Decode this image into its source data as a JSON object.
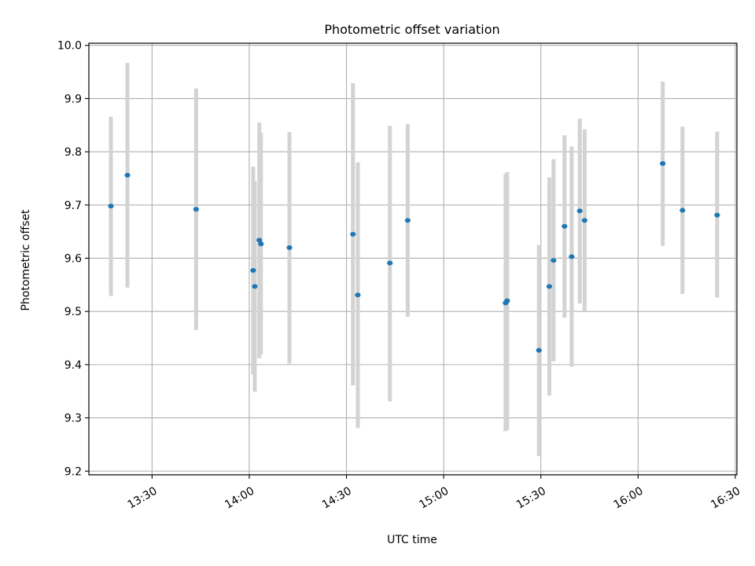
{
  "chart_data": {
    "type": "scatter",
    "title": "Photometric offset variation",
    "xlabel": "UTC time",
    "ylabel": "Photometric offset",
    "x_unit": "minutes since 00:00 UTC",
    "xlim": [
      790.5,
      990.5
    ],
    "ylim": [
      9.193,
      10.004
    ],
    "grid": true,
    "x_ticks": [
      {
        "value": 810,
        "label": "13:30"
      },
      {
        "value": 840,
        "label": "14:00"
      },
      {
        "value": 870,
        "label": "14:30"
      },
      {
        "value": 900,
        "label": "15:00"
      },
      {
        "value": 930,
        "label": "15:30"
      },
      {
        "value": 960,
        "label": "16:00"
      },
      {
        "value": 990,
        "label": "16:30"
      }
    ],
    "y_ticks": [
      {
        "value": 9.2,
        "label": "9.2"
      },
      {
        "value": 9.3,
        "label": "9.3"
      },
      {
        "value": 9.4,
        "label": "9.4"
      },
      {
        "value": 9.5,
        "label": "9.5"
      },
      {
        "value": 9.6,
        "label": "9.6"
      },
      {
        "value": 9.7,
        "label": "9.7"
      },
      {
        "value": 9.8,
        "label": "9.8"
      },
      {
        "value": 9.9,
        "label": "9.9"
      },
      {
        "value": 10.0,
        "label": "10.0"
      }
    ],
    "marker_color": "#1f77b4",
    "errorbar_color": "#d3d3d3",
    "points": [
      {
        "x": 797.3,
        "y": 9.698,
        "lo": 9.529,
        "hi": 9.866
      },
      {
        "x": 802.4,
        "y": 9.756,
        "lo": 9.545,
        "hi": 9.967
      },
      {
        "x": 823.6,
        "y": 9.692,
        "lo": 9.465,
        "hi": 9.919
      },
      {
        "x": 841.2,
        "y": 9.577,
        "lo": 9.382,
        "hi": 9.772
      },
      {
        "x": 841.7,
        "y": 9.547,
        "lo": 9.349,
        "hi": 9.745
      },
      {
        "x": 843.1,
        "y": 9.634,
        "lo": 9.412,
        "hi": 9.855
      },
      {
        "x": 843.6,
        "y": 9.627,
        "lo": 9.419,
        "hi": 9.836
      },
      {
        "x": 852.4,
        "y": 9.62,
        "lo": 9.402,
        "hi": 9.837
      },
      {
        "x": 872.0,
        "y": 9.645,
        "lo": 9.361,
        "hi": 9.929
      },
      {
        "x": 873.5,
        "y": 9.531,
        "lo": 9.281,
        "hi": 9.78
      },
      {
        "x": 883.4,
        "y": 9.591,
        "lo": 9.331,
        "hi": 9.849
      },
      {
        "x": 888.9,
        "y": 9.671,
        "lo": 9.49,
        "hi": 9.852
      },
      {
        "x": 919.1,
        "y": 9.516,
        "lo": 9.275,
        "hi": 9.758
      },
      {
        "x": 919.6,
        "y": 9.52,
        "lo": 9.277,
        "hi": 9.762
      },
      {
        "x": 929.4,
        "y": 9.427,
        "lo": 9.228,
        "hi": 9.625
      },
      {
        "x": 932.6,
        "y": 9.547,
        "lo": 9.342,
        "hi": 9.752
      },
      {
        "x": 933.9,
        "y": 9.596,
        "lo": 9.406,
        "hi": 9.786
      },
      {
        "x": 937.3,
        "y": 9.66,
        "lo": 9.488,
        "hi": 9.831
      },
      {
        "x": 939.5,
        "y": 9.603,
        "lo": 9.396,
        "hi": 9.81
      },
      {
        "x": 942.0,
        "y": 9.689,
        "lo": 9.515,
        "hi": 9.862
      },
      {
        "x": 943.5,
        "y": 9.671,
        "lo": 9.5,
        "hi": 9.842
      },
      {
        "x": 967.6,
        "y": 9.778,
        "lo": 9.623,
        "hi": 9.932
      },
      {
        "x": 973.7,
        "y": 9.69,
        "lo": 9.533,
        "hi": 9.847
      },
      {
        "x": 984.4,
        "y": 9.681,
        "lo": 9.526,
        "hi": 9.838
      }
    ]
  }
}
